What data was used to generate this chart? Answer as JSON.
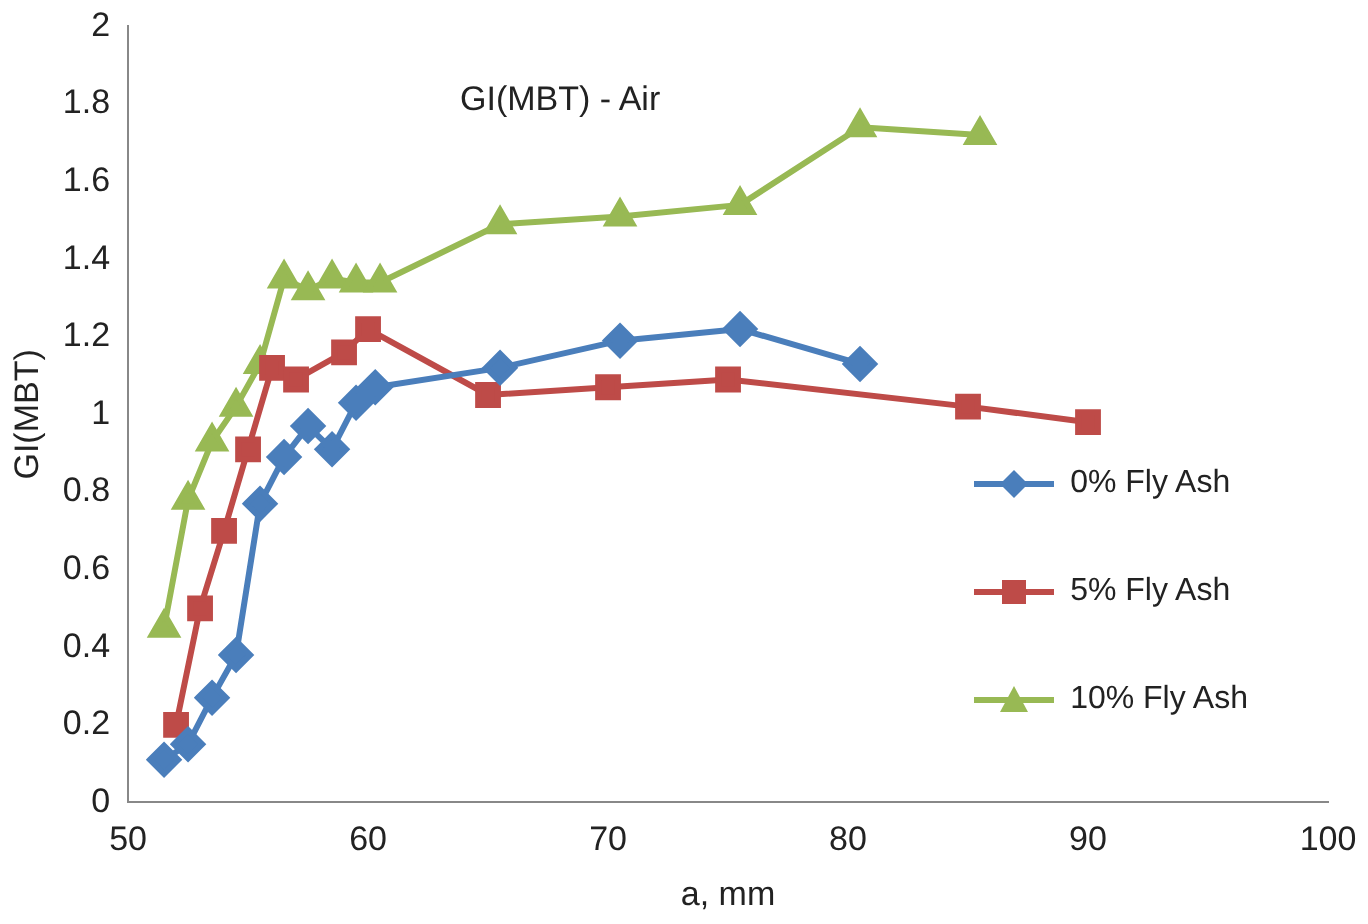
{
  "chart_data": {
    "type": "line",
    "title": "GI(MBT) - Air",
    "xlabel": "a, mm",
    "ylabel": "GI(MBT)",
    "xlim": [
      50,
      100
    ],
    "xticks": [
      50,
      60,
      70,
      80,
      90,
      100
    ],
    "ylim": [
      0,
      2
    ],
    "yticks": [
      0,
      {
        "value": 0.2,
        "label": "0.2"
      },
      {
        "value": 0.4,
        "label": "0.4"
      },
      {
        "value": 0.6,
        "label": "0.6"
      },
      {
        "value": 0.8,
        "label": "0.8"
      },
      1,
      {
        "value": 1.2,
        "label": "1.2"
      },
      {
        "value": 1.4,
        "label": "1.4"
      },
      {
        "value": 1.6,
        "label": "1.6"
      },
      {
        "value": 1.8,
        "label": "1.8"
      },
      2
    ],
    "grid": false,
    "legend": "right",
    "line_style": "solid",
    "series": [
      {
        "name": "0% Fly Ash",
        "color": "#4a7ebb",
        "marker": "diamond",
        "x": [
          51.5,
          52.5,
          53.5,
          54.5,
          55.5,
          56.5,
          57.5,
          58.5,
          59.5,
          60.3,
          65.5,
          70.5,
          75.5,
          80.5
        ],
        "values": [
          0.11,
          0.15,
          0.27,
          0.38,
          0.77,
          0.89,
          0.97,
          0.91,
          1.03,
          1.07,
          1.12,
          1.19,
          1.22,
          1.13
        ]
      },
      {
        "name": "5% Fly Ash",
        "color": "#be4b48",
        "marker": "square",
        "x": [
          52,
          53,
          54,
          55,
          56,
          57,
          59,
          60,
          65,
          70,
          75,
          85,
          90
        ],
        "values": [
          0.2,
          0.5,
          0.7,
          0.91,
          1.12,
          1.09,
          1.16,
          1.22,
          1.05,
          1.07,
          1.09,
          1.02,
          0.98
        ]
      },
      {
        "name": "10% Fly Ash",
        "color": "#98b954",
        "marker": "triangle",
        "x": [
          51.5,
          52.5,
          53.5,
          54.5,
          55.5,
          56.5,
          57.5,
          58.5,
          59.5,
          60.5,
          65.5,
          70.5,
          75.5,
          80.5,
          85.5
        ],
        "values": [
          0.45,
          0.78,
          0.93,
          1.02,
          1.13,
          1.35,
          1.32,
          1.35,
          1.34,
          1.34,
          1.49,
          1.51,
          1.54,
          1.74,
          1.72
        ]
      }
    ]
  }
}
